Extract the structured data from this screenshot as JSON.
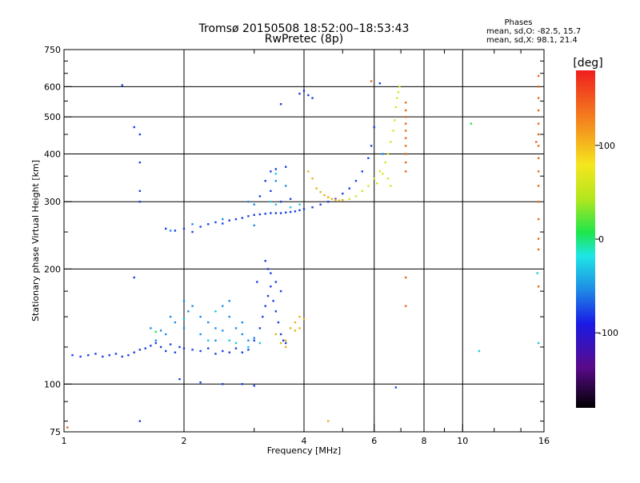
{
  "chart_data": {
    "type": "scatter",
    "title": "Tromsø 20150508 18:52:00–18:53:43",
    "subtitle": "RwPretec (8p)",
    "xlabel": "Frequency [MHz]",
    "ylabel": "Stationary phase Virtual Height [km]",
    "x_scale": "log",
    "y_scale": "log",
    "xlim": [
      1,
      16
    ],
    "ylim": [
      75,
      750
    ],
    "x_ticks": [
      1,
      2,
      4,
      6,
      8,
      10,
      16
    ],
    "y_ticks": [
      75,
      100,
      200,
      300,
      400,
      500,
      600,
      750
    ],
    "grid_x": [
      2,
      4,
      6,
      8,
      10
    ],
    "grid_y": [
      100,
      200,
      300,
      400,
      500,
      600
    ],
    "grid": true,
    "phases": {
      "header": "Phases",
      "o_line": "mean, sd,O:  -82.5, 15.7",
      "x_line": "mean, sd,X:   98.1, 21.4"
    },
    "colorbar": {
      "label": "[deg]",
      "min": -180,
      "max": 180,
      "ticks": [
        100,
        0,
        -100
      ]
    },
    "series": [
      {
        "color": "#1a3fe6",
        "points": [
          [
            1.05,
            119
          ],
          [
            1.1,
            118
          ],
          [
            1.15,
            119
          ],
          [
            1.2,
            120
          ],
          [
            1.25,
            118
          ],
          [
            1.3,
            119
          ],
          [
            1.35,
            120
          ],
          [
            1.4,
            118
          ],
          [
            1.45,
            119
          ],
          [
            1.5,
            121
          ],
          [
            1.55,
            123
          ],
          [
            1.6,
            124
          ],
          [
            1.65,
            126
          ],
          [
            1.7,
            128
          ],
          [
            1.75,
            125
          ],
          [
            1.8,
            122
          ],
          [
            1.85,
            127
          ],
          [
            1.9,
            121
          ],
          [
            1.95,
            125
          ],
          [
            2.0,
            124
          ],
          [
            2.1,
            123
          ],
          [
            2.2,
            122
          ],
          [
            2.3,
            124
          ],
          [
            2.4,
            120
          ],
          [
            2.5,
            122
          ],
          [
            2.6,
            121
          ],
          [
            2.7,
            124
          ],
          [
            2.8,
            121
          ],
          [
            2.9,
            123
          ],
          [
            3.0,
            130
          ],
          [
            3.1,
            140
          ],
          [
            3.15,
            150
          ],
          [
            3.2,
            160
          ],
          [
            3.25,
            170
          ],
          [
            3.3,
            180
          ],
          [
            3.35,
            165
          ],
          [
            3.4,
            155
          ],
          [
            3.45,
            145
          ],
          [
            3.5,
            135
          ],
          [
            3.55,
            130
          ],
          [
            3.6,
            128
          ],
          [
            3.2,
            210
          ],
          [
            3.3,
            195
          ],
          [
            3.4,
            185
          ],
          [
            3.05,
            185
          ],
          [
            3.25,
            200
          ],
          [
            3.5,
            175
          ],
          [
            1.8,
            255
          ],
          [
            1.9,
            252
          ],
          [
            2.0,
            255
          ],
          [
            2.1,
            250
          ],
          [
            2.2,
            258
          ],
          [
            2.3,
            262
          ],
          [
            2.4,
            265
          ],
          [
            2.5,
            263
          ],
          [
            2.6,
            268
          ],
          [
            2.7,
            270
          ],
          [
            2.8,
            272
          ],
          [
            2.9,
            275
          ],
          [
            3.0,
            277
          ],
          [
            3.1,
            278
          ],
          [
            3.2,
            279
          ],
          [
            3.3,
            280
          ],
          [
            3.4,
            280
          ],
          [
            3.5,
            280
          ],
          [
            3.6,
            281
          ],
          [
            3.7,
            282
          ],
          [
            3.8,
            283
          ],
          [
            3.9,
            285
          ],
          [
            4.0,
            287
          ],
          [
            4.2,
            290
          ],
          [
            4.4,
            295
          ],
          [
            4.6,
            300
          ],
          [
            4.8,
            305
          ],
          [
            5.0,
            315
          ],
          [
            5.2,
            325
          ],
          [
            5.4,
            340
          ],
          [
            5.6,
            360
          ],
          [
            5.8,
            390
          ],
          [
            5.9,
            420
          ],
          [
            6.0,
            470
          ],
          [
            3.1,
            310
          ],
          [
            3.3,
            320
          ],
          [
            3.5,
            300
          ],
          [
            3.2,
            340
          ],
          [
            3.7,
            305
          ],
          [
            4.1,
            570
          ],
          [
            4.0,
            585
          ],
          [
            4.2,
            560
          ],
          [
            3.9,
            575
          ],
          [
            3.5,
            540
          ],
          [
            3.3,
            360
          ],
          [
            3.4,
            365
          ],
          [
            3.6,
            370
          ],
          [
            1.4,
            605
          ],
          [
            1.5,
            470
          ],
          [
            1.55,
            450
          ],
          [
            1.55,
            380
          ],
          [
            1.55,
            320
          ],
          [
            1.55,
            300
          ],
          [
            1.5,
            190
          ],
          [
            1.55,
            80
          ],
          [
            6.2,
            612
          ],
          [
            6.8,
            98
          ],
          [
            1.95,
            103
          ],
          [
            2.2,
            101
          ],
          [
            2.5,
            100
          ],
          [
            2.8,
            100
          ],
          [
            3.0,
            99
          ]
        ]
      },
      {
        "color": "#1e8bea",
        "points": [
          [
            1.8,
            135
          ],
          [
            1.85,
            150
          ],
          [
            1.9,
            145
          ],
          [
            2.0,
            140
          ],
          [
            2.05,
            155
          ],
          [
            2.1,
            160
          ],
          [
            2.2,
            150
          ],
          [
            2.3,
            145
          ],
          [
            2.4,
            140
          ],
          [
            2.5,
            138
          ],
          [
            2.6,
            150
          ],
          [
            2.7,
            140
          ],
          [
            2.8,
            135
          ],
          [
            2.9,
            130
          ],
          [
            3.0,
            132
          ],
          [
            1.65,
            140
          ],
          [
            1.7,
            130
          ],
          [
            1.75,
            138
          ],
          [
            2.5,
            160
          ],
          [
            2.6,
            165
          ],
          [
            2.2,
            135
          ],
          [
            2.4,
            130
          ],
          [
            2.0,
            165
          ],
          [
            2.8,
            145
          ],
          [
            2.9,
            300
          ],
          [
            3.0,
            295
          ],
          [
            3.4,
            340
          ],
          [
            3.6,
            330
          ],
          [
            1.85,
            252
          ],
          [
            2.1,
            262
          ],
          [
            2.5,
            270
          ],
          [
            3.0,
            260
          ],
          [
            6.3,
            400
          ]
        ]
      },
      {
        "color": "#1ec8e6",
        "points": [
          [
            2.3,
            130
          ],
          [
            2.6,
            130
          ],
          [
            2.7,
            128
          ],
          [
            2.9,
            125
          ],
          [
            3.1,
            128
          ],
          [
            3.3,
            300
          ],
          [
            3.4,
            295
          ],
          [
            3.7,
            290
          ],
          [
            3.9,
            295
          ],
          [
            3.4,
            355
          ],
          [
            2.0,
            148
          ],
          [
            2.4,
            155
          ],
          [
            11.0,
            122
          ],
          [
            15.4,
            195
          ],
          [
            15.5,
            128
          ]
        ]
      },
      {
        "color": "#e6b418",
        "points": [
          [
            3.5,
            128
          ],
          [
            3.6,
            130
          ],
          [
            3.7,
            140
          ],
          [
            3.8,
            145
          ],
          [
            3.9,
            150
          ],
          [
            4.0,
            148
          ],
          [
            3.9,
            140
          ],
          [
            3.8,
            138
          ],
          [
            3.6,
            125
          ],
          [
            3.4,
            135
          ],
          [
            4.1,
            360
          ],
          [
            4.2,
            345
          ],
          [
            4.3,
            325
          ],
          [
            4.4,
            318
          ],
          [
            4.5,
            312
          ],
          [
            4.6,
            308
          ],
          [
            4.7,
            305
          ],
          [
            4.8,
            303
          ],
          [
            4.9,
            302
          ],
          [
            5.0,
            303
          ],
          [
            4.6,
            80
          ]
        ]
      },
      {
        "color": "#d6e61e",
        "points": [
          [
            5.2,
            305
          ],
          [
            5.4,
            310
          ],
          [
            5.6,
            320
          ],
          [
            5.8,
            330
          ],
          [
            6.0,
            345
          ],
          [
            6.2,
            360
          ],
          [
            6.4,
            380
          ],
          [
            6.5,
            400
          ],
          [
            6.6,
            430
          ],
          [
            6.7,
            460
          ],
          [
            6.75,
            490
          ],
          [
            6.8,
            530
          ],
          [
            6.85,
            560
          ],
          [
            6.9,
            580
          ],
          [
            6.95,
            600
          ],
          [
            6.5,
            345
          ],
          [
            6.6,
            330
          ],
          [
            6.3,
            355
          ],
          [
            6.1,
            335
          ]
        ]
      },
      {
        "color": "#e8641e",
        "points": [
          [
            7.2,
            545
          ],
          [
            7.2,
            520
          ],
          [
            7.2,
            500
          ],
          [
            7.2,
            480
          ],
          [
            7.2,
            460
          ],
          [
            7.2,
            440
          ],
          [
            7.2,
            420
          ],
          [
            7.2,
            400
          ],
          [
            7.2,
            380
          ],
          [
            7.2,
            360
          ],
          [
            7.2,
            190
          ],
          [
            7.2,
            160
          ],
          [
            15.5,
            640
          ],
          [
            15.5,
            600
          ],
          [
            15.5,
            560
          ],
          [
            15.5,
            520
          ],
          [
            15.5,
            480
          ],
          [
            15.5,
            450
          ],
          [
            15.5,
            420
          ],
          [
            15.5,
            390
          ],
          [
            15.5,
            360
          ],
          [
            15.5,
            330
          ],
          [
            15.5,
            300
          ],
          [
            15.5,
            270
          ],
          [
            15.5,
            240
          ],
          [
            15.5,
            225
          ],
          [
            15.5,
            180
          ],
          [
            15.3,
            430
          ],
          [
            5.9,
            620
          ],
          [
            1.02,
            77
          ]
        ]
      },
      {
        "color": "#1ee64a",
        "points": [
          [
            10.5,
            480
          ],
          [
            1.7,
            137
          ]
        ]
      }
    ]
  }
}
